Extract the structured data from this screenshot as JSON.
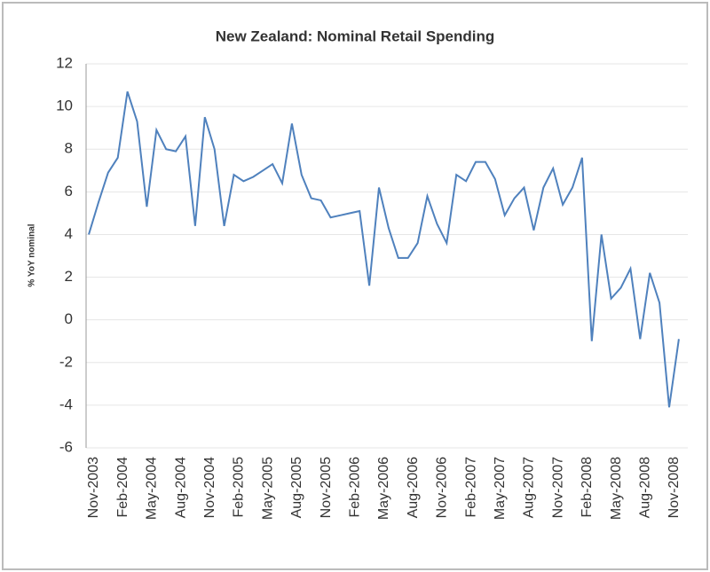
{
  "chart_data": {
    "type": "line",
    "title": "New Zealand: Nominal Retail Spending",
    "y_label": "% YoY nominal",
    "categories": [
      "Nov-2003",
      null,
      null,
      "Feb-2004",
      null,
      null,
      "May-2004",
      null,
      null,
      "Aug-2004",
      null,
      null,
      "Nov-2004",
      null,
      null,
      "Feb-2005",
      null,
      null,
      "May-2005",
      null,
      null,
      "Aug-2005",
      null,
      null,
      "Nov-2005",
      null,
      null,
      "Feb-2006",
      null,
      null,
      "May-2006",
      null,
      null,
      "Aug-2006",
      null,
      null,
      "Nov-2006",
      null,
      null,
      "Feb-2007",
      null,
      null,
      "May-2007",
      null,
      null,
      "Aug-2007",
      null,
      null,
      "Nov-2007",
      null,
      null,
      "Feb-2008",
      null,
      null,
      "May-2008",
      null,
      null,
      "Aug-2008",
      null,
      null,
      "Nov-2008",
      null
    ],
    "series": [
      {
        "name": "Nominal retail spending",
        "color": "#4f81bd",
        "values": [
          4.0,
          5.5,
          6.9,
          7.6,
          10.7,
          9.3,
          5.3,
          8.9,
          8.0,
          7.9,
          8.6,
          4.4,
          9.5,
          8.0,
          4.4,
          6.8,
          6.5,
          6.7,
          7.0,
          7.3,
          6.4,
          9.2,
          6.8,
          5.7,
          5.6,
          4.8,
          4.9,
          5.0,
          5.1,
          1.6,
          6.2,
          4.3,
          2.9,
          2.9,
          3.6,
          5.8,
          4.5,
          3.6,
          6.8,
          6.5,
          7.4,
          7.4,
          6.6,
          4.9,
          5.7,
          6.2,
          4.2,
          6.2,
          7.1,
          5.4,
          6.2,
          7.6,
          -1.0,
          4.0,
          1.0,
          1.5,
          2.4,
          -0.9,
          2.2,
          0.8,
          -4.1,
          -0.9
        ]
      }
    ],
    "ylim": [
      -6,
      12
    ],
    "yticks": [
      -6,
      -4,
      -2,
      0,
      2,
      4,
      6,
      8,
      10,
      12
    ],
    "grid": true
  }
}
